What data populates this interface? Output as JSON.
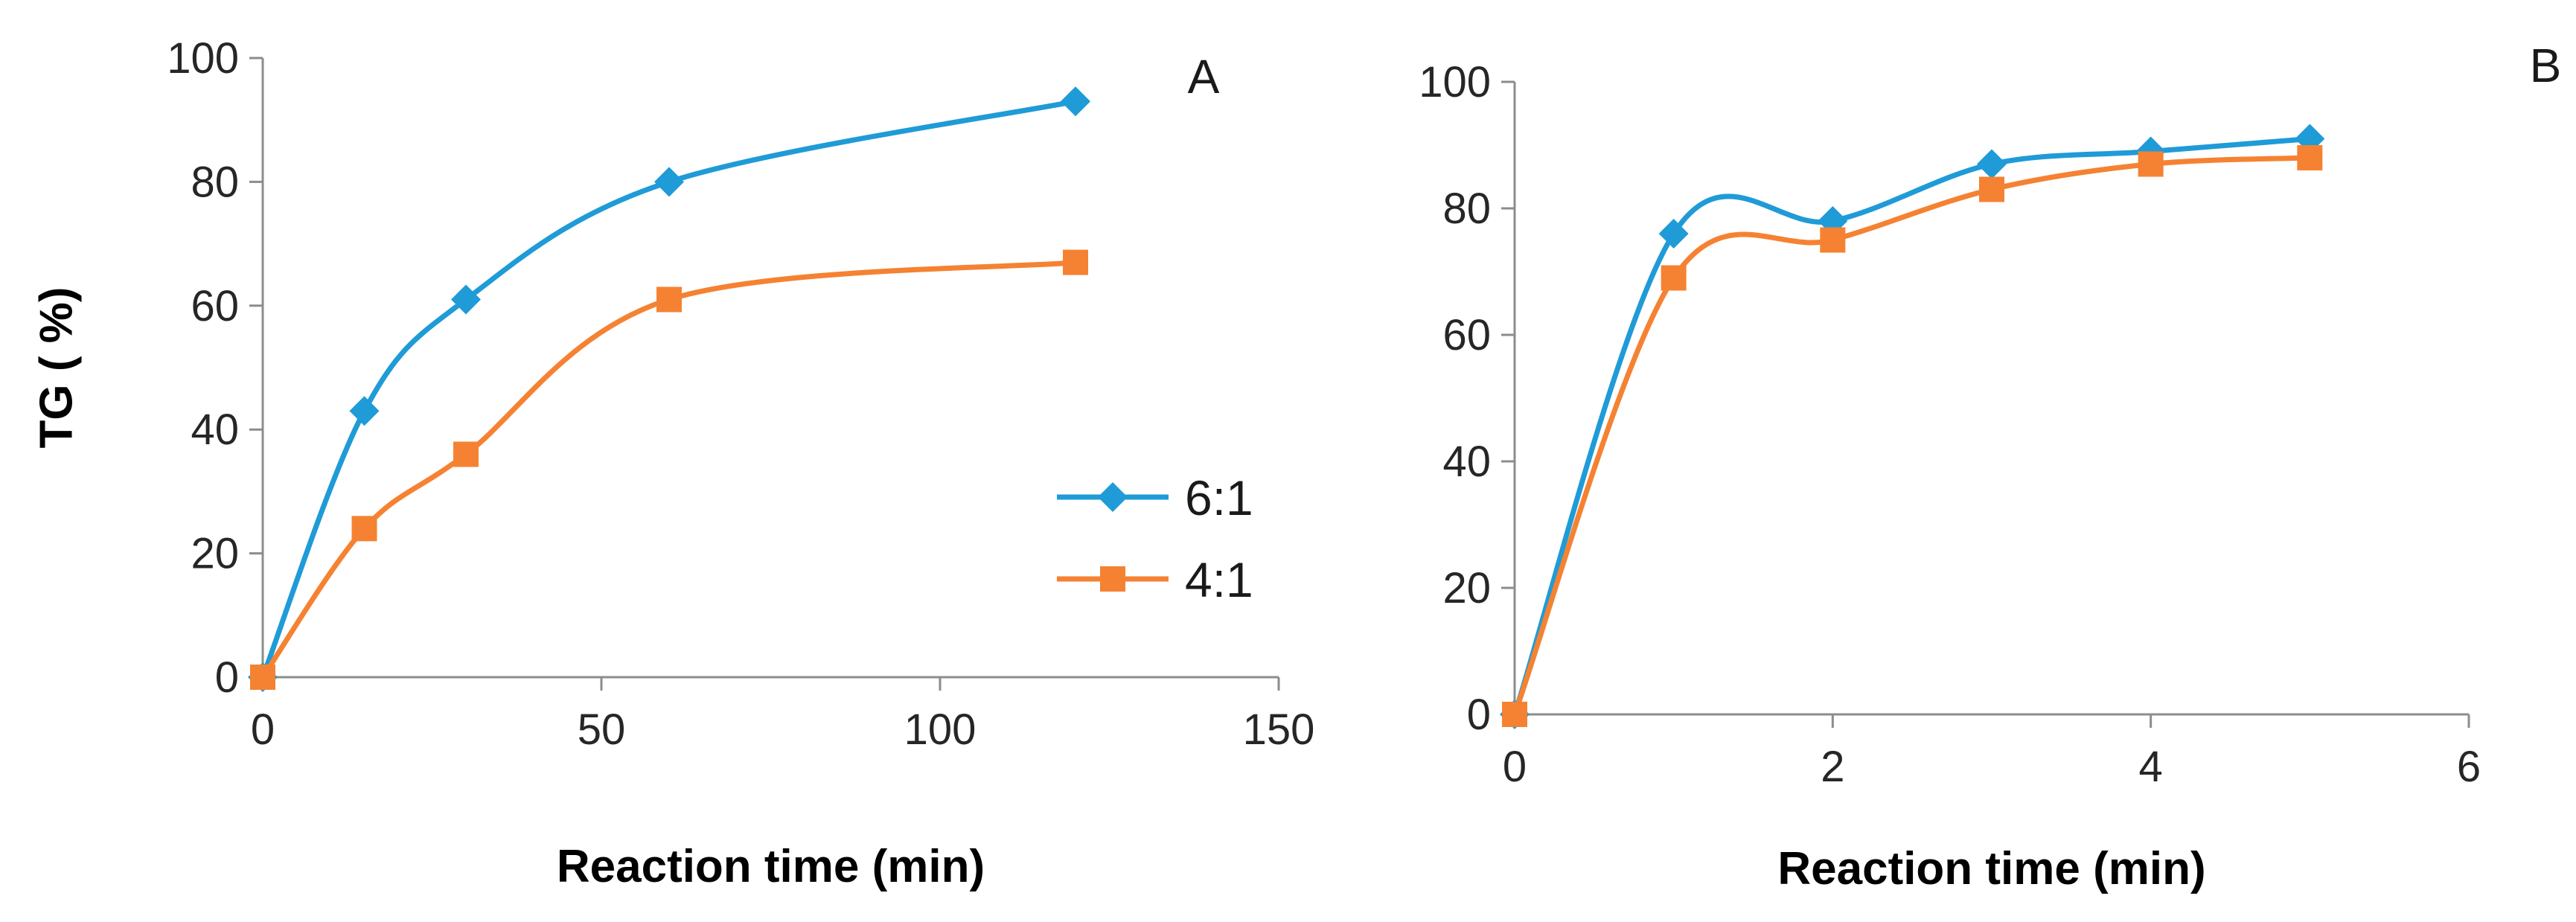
{
  "chart_data": [
    {
      "type": "line",
      "panel_label": "A",
      "xlabel": "Reaction time (min)",
      "ylabel": "TG ( %)",
      "xlim": [
        0,
        150
      ],
      "ylim": [
        0,
        100
      ],
      "xticks": [
        0,
        50,
        100,
        150
      ],
      "yticks": [
        0,
        20,
        40,
        60,
        80,
        100
      ],
      "grid": false,
      "legend": "right",
      "series": [
        {
          "name": "6:1",
          "color": "#1f9bd7",
          "marker": "diamond",
          "x": [
            0,
            15,
            30,
            60,
            120
          ],
          "y": [
            0,
            43,
            61,
            80,
            93
          ]
        },
        {
          "name": "4:1",
          "color": "#f58232",
          "marker": "square",
          "x": [
            0,
            15,
            30,
            60,
            120
          ],
          "y": [
            0,
            24,
            36,
            61,
            67
          ]
        }
      ]
    },
    {
      "type": "line",
      "panel_label": "B",
      "xlabel": "Reaction time (min)",
      "ylabel": "",
      "xlim": [
        0,
        6
      ],
      "ylim": [
        0,
        100
      ],
      "xticks": [
        0,
        2,
        4,
        6
      ],
      "yticks": [
        0,
        20,
        40,
        60,
        80,
        100
      ],
      "grid": false,
      "legend": "none",
      "series": [
        {
          "name": "6:1",
          "color": "#1f9bd7",
          "marker": "diamond",
          "x": [
            0,
            1,
            2,
            3,
            4,
            5
          ],
          "y": [
            0,
            76,
            78,
            87,
            89,
            91
          ]
        },
        {
          "name": "4:1",
          "color": "#f58232",
          "marker": "square",
          "x": [
            0,
            1,
            2,
            3,
            4,
            5
          ],
          "y": [
            0,
            69,
            75,
            83,
            87,
            88
          ]
        }
      ]
    }
  ]
}
